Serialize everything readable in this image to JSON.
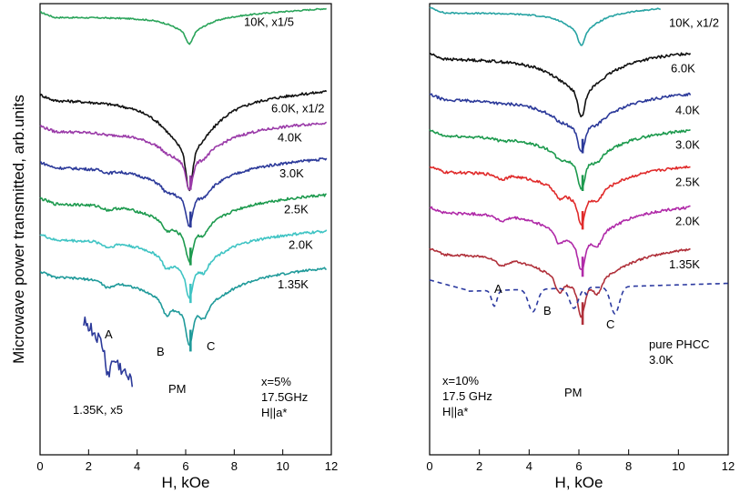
{
  "chart_data": [
    {
      "type": "line",
      "panel": "left",
      "ylabel": "Microwave power transmitted, arb.units",
      "xlabel": "H, kOe",
      "xlim": [
        0,
        12
      ],
      "xticks": [
        0,
        2,
        4,
        6,
        8,
        10,
        12
      ],
      "xtick_labels": [
        "0",
        "2",
        "4",
        "6",
        "8",
        "10",
        "12"
      ],
      "notes": [
        "x=5%",
        "17.5GHz",
        "H||a*"
      ],
      "feature_labels": [
        "A",
        "B",
        "PM",
        "C"
      ],
      "series": [
        {
          "name": "10K, x1/5",
          "color": "#2aa45a",
          "offset": 97,
          "amp": 10,
          "dip": 0.62,
          "feature": 0,
          "noise": 0.3
        },
        {
          "name": "6.0K, x1/2",
          "color": "#111111",
          "offset": 79,
          "amp": 34,
          "dip": 0.9,
          "feature": 0,
          "noise": 0.6
        },
        {
          "name": "4.0K",
          "color": "#9a3aa8",
          "offset": 72,
          "amp": 22,
          "dip": 0.95,
          "feature": 0.1,
          "noise": 0.6
        },
        {
          "name": "3.0K",
          "color": "#2c3a9a",
          "offset": 64,
          "amp": 22,
          "dip": 1.0,
          "feature": 0.2,
          "noise": 0.6
        },
        {
          "name": "2.5K",
          "color": "#1d9a4e",
          "offset": 56,
          "amp": 22,
          "dip": 1.0,
          "feature": 0.3,
          "noise": 0.6
        },
        {
          "name": "2.0K",
          "color": "#3fc4c4",
          "offset": 48,
          "amp": 22,
          "dip": 1.0,
          "feature": 0.4,
          "noise": 0.6
        },
        {
          "name": "1.35K",
          "color": "#1f9a9a",
          "offset": 40,
          "amp": 26,
          "dip": 1.2,
          "feature": 0.55,
          "noise": 0.5
        }
      ],
      "inset": {
        "name": "1.35K, x5",
        "color": "#2c3a9a",
        "x": [
          1.8,
          3.8
        ]
      }
    },
    {
      "type": "line",
      "panel": "right",
      "xlabel": "H, kOe",
      "xlim": [
        0,
        12
      ],
      "xticks": [
        0,
        2,
        4,
        6,
        8,
        10,
        12
      ],
      "xtick_labels": [
        "0",
        "2",
        "4",
        "6",
        "8",
        "10",
        "12"
      ],
      "notes": [
        "x=10%",
        "17.5 GHz",
        "H||a*"
      ],
      "feature_labels": [
        "A",
        "B",
        "PM",
        "C"
      ],
      "series": [
        {
          "name": "10K, x1/2",
          "color": "#27a3a3",
          "offset": 98,
          "amp": 12,
          "dip": 0.6,
          "feature": 0,
          "noise": 0.3
        },
        {
          "name": "6.0K",
          "color": "#111111",
          "offset": 88,
          "amp": 22,
          "dip": 0.9,
          "feature": 0,
          "noise": 0.6
        },
        {
          "name": "4.0K",
          "color": "#2c3a9a",
          "offset": 79,
          "amp": 20,
          "dip": 1.0,
          "feature": 0.1,
          "noise": 0.6
        },
        {
          "name": "3.0K",
          "color": "#1d9a4e",
          "offset": 71,
          "amp": 20,
          "dip": 1.0,
          "feature": 0.2,
          "noise": 0.6
        },
        {
          "name": "2.5K",
          "color": "#e02a2a",
          "offset": 63,
          "amp": 20,
          "dip": 1.0,
          "feature": 0.35,
          "noise": 0.6
        },
        {
          "name": "2.0K",
          "color": "#b02aa8",
          "offset": 54,
          "amp": 22,
          "dip": 1.0,
          "feature": 0.45,
          "noise": 0.6
        },
        {
          "name": "1.35K",
          "color": "#b0303a",
          "offset": 45,
          "amp": 24,
          "dip": 1.2,
          "feature": 0.6,
          "noise": 0.5
        },
        {
          "name": "pure PHCC",
          "color": "#2c3aa0",
          "offset": 36,
          "amp": 0,
          "dip": 0,
          "feature": 0,
          "noise": 0,
          "dashed": true
        },
        {
          "name": "3.0K",
          "color": "#000000",
          "offset": 0,
          "amp": 0,
          "dip": 0,
          "feature": 0,
          "noise": 0,
          "label_only": true
        }
      ]
    }
  ]
}
